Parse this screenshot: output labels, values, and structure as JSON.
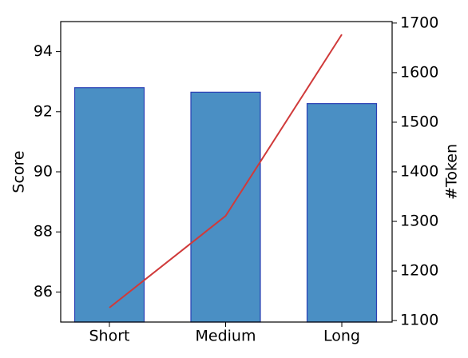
{
  "chart_data": {
    "type": "bar-line",
    "categories": [
      "Short",
      "Medium",
      "Long"
    ],
    "ylabel": "Score",
    "y2label": "#Token",
    "ylim": [
      85,
      95
    ],
    "yticks": [
      86,
      88,
      90,
      92,
      94
    ],
    "y2lim": [
      1097,
      1703
    ],
    "y2ticks": [
      1100,
      1200,
      1300,
      1400,
      1500,
      1600,
      1700
    ],
    "series": [
      {
        "name": "Score",
        "type": "bar",
        "color": "#4a8fc4",
        "edgecolor": "#2b3fb5",
        "values": [
          92.8,
          92.65,
          92.27
        ]
      },
      {
        "name": "#Token",
        "type": "line",
        "axis": "y2",
        "color": "#d03a3a",
        "values": [
          1126,
          1311,
          1677
        ]
      }
    ]
  }
}
